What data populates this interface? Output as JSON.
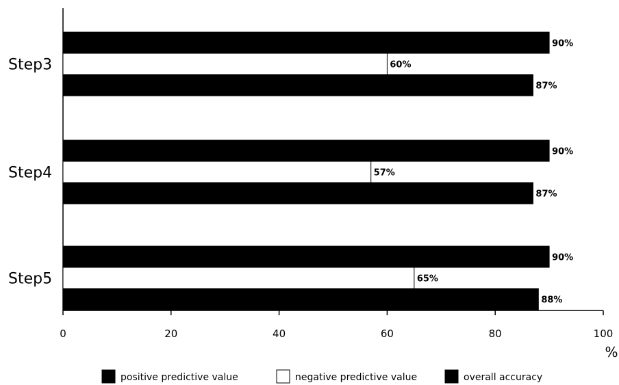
{
  "chart_data": {
    "type": "bar",
    "orientation": "horizontal",
    "categories": [
      "Step3",
      "Step4",
      "Step5"
    ],
    "series": [
      {
        "name": "positive predictive value",
        "values": [
          90,
          90,
          90
        ],
        "labels": [
          "90%",
          "90%",
          "90%"
        ],
        "color": "#000000"
      },
      {
        "name": "negative predictive value",
        "values": [
          60,
          57,
          65
        ],
        "labels": [
          "60%",
          "57%",
          "65%"
        ],
        "color": "#ffffff"
      },
      {
        "name": "overall accuracy",
        "values": [
          87,
          87,
          88
        ],
        "labels": [
          "87%",
          "87%",
          "88%"
        ],
        "color": "#000000"
      }
    ],
    "xlabel": "%",
    "xlim": [
      0,
      100
    ],
    "xticks": [
      0,
      20,
      40,
      60,
      80,
      100
    ],
    "grid": false,
    "legend": "bottom"
  }
}
